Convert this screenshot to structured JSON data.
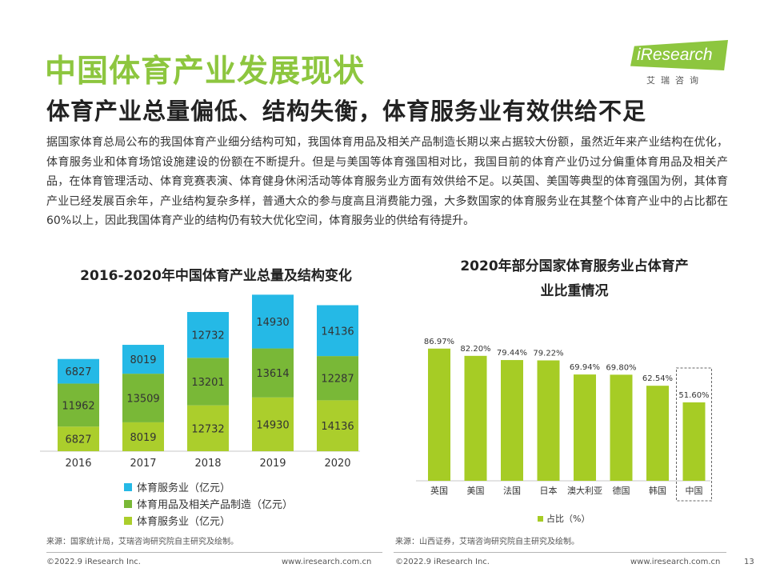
{
  "title": "中国体育产业发展现状",
  "subtitle": "体育产业总量偏低、结构失衡，体育服务业有效供给不足",
  "logo": {
    "text": "iResearch",
    "sub": "艾瑞咨询"
  },
  "body_text": "据国家体育总局公布的我国体育产业细分结构可知，我国体育用品及相关产品制造长期以来占据较大份额，虽然近年来产业结构在优化，体育服务业和体育场馆设施建设的份额在不断提升。但是与美国等体育强国相对比，我国目前的体育产业仍过分偏重体育用品及相关产品，在体育管理活动、体育竞赛表演、体育健身休闲活动等体育服务业方面有效供给不足。以英国、美国等典型的体育强国为例，其体育产业已经发展百余年，产业结构复杂多样，普通大众的参与度高且消费能力强，大多数国家的体育服务业在其整个体育产业中的占比都在60%以上，因此我国体育产业的结构仍有较大优化空间，体育服务业的供给有待提升。",
  "colors": {
    "brand_green": "#8dc63f",
    "cyan": "#25b9e6",
    "mid_green": "#79b837",
    "light_green": "#abce2c",
    "bar_green": "#a6cc25"
  },
  "chart_data": [
    {
      "type": "bar",
      "stacked": true,
      "title": "2016-2020年中国体育产业总量及结构变化",
      "categories": [
        "2016",
        "2017",
        "2018",
        "2019",
        "2020"
      ],
      "series": [
        {
          "name": "体育服务业（亿元）",
          "values": [
            6827,
            8019,
            12732,
            14930,
            14136
          ],
          "color": "#abce2c"
        },
        {
          "name": "体育用品及相关产品制造（亿元）",
          "values": [
            11962,
            13509,
            13201,
            13614,
            12287
          ],
          "color": "#79b837"
        },
        {
          "name": "体育服务业（亿元）",
          "values": [
            6827,
            8019,
            12732,
            14930,
            14136
          ],
          "color": "#25b9e6"
        }
      ],
      "legend_order": [
        2,
        1,
        0
      ],
      "legend_position": "bottom",
      "grid": false
    },
    {
      "type": "bar",
      "title": "2020年部分国家体育服务业占体育产业比重情况",
      "title_lines": [
        "2020年部分国家体育服务业占体育产",
        "业比重情况"
      ],
      "categories": [
        "英国",
        "美国",
        "法国",
        "日本",
        "澳大利亚",
        "德国",
        "韩国",
        "中国"
      ],
      "series": [
        {
          "name": "占比（%）",
          "values": [
            86.97,
            82.2,
            79.44,
            79.22,
            69.94,
            69.8,
            62.54,
            51.6
          ],
          "labels": [
            "86.97%",
            "82.20%",
            "79.44%",
            "79.22%",
            "69.94%",
            "69.80%",
            "62.54%",
            "51.60%"
          ],
          "color": "#a6cc25"
        }
      ],
      "highlight": "中国",
      "legend_position": "bottom",
      "grid": false
    }
  ],
  "sources": {
    "left": "来源：国家统计局，艾瑞咨询研究院自主研究及绘制。",
    "right": "来源：山西证券，艾瑞咨询研究院自主研究及绘制。"
  },
  "footer": {
    "copyright": "©2022.9 iResearch Inc.",
    "url": "www.iresearch.com.cn",
    "page": "13"
  }
}
